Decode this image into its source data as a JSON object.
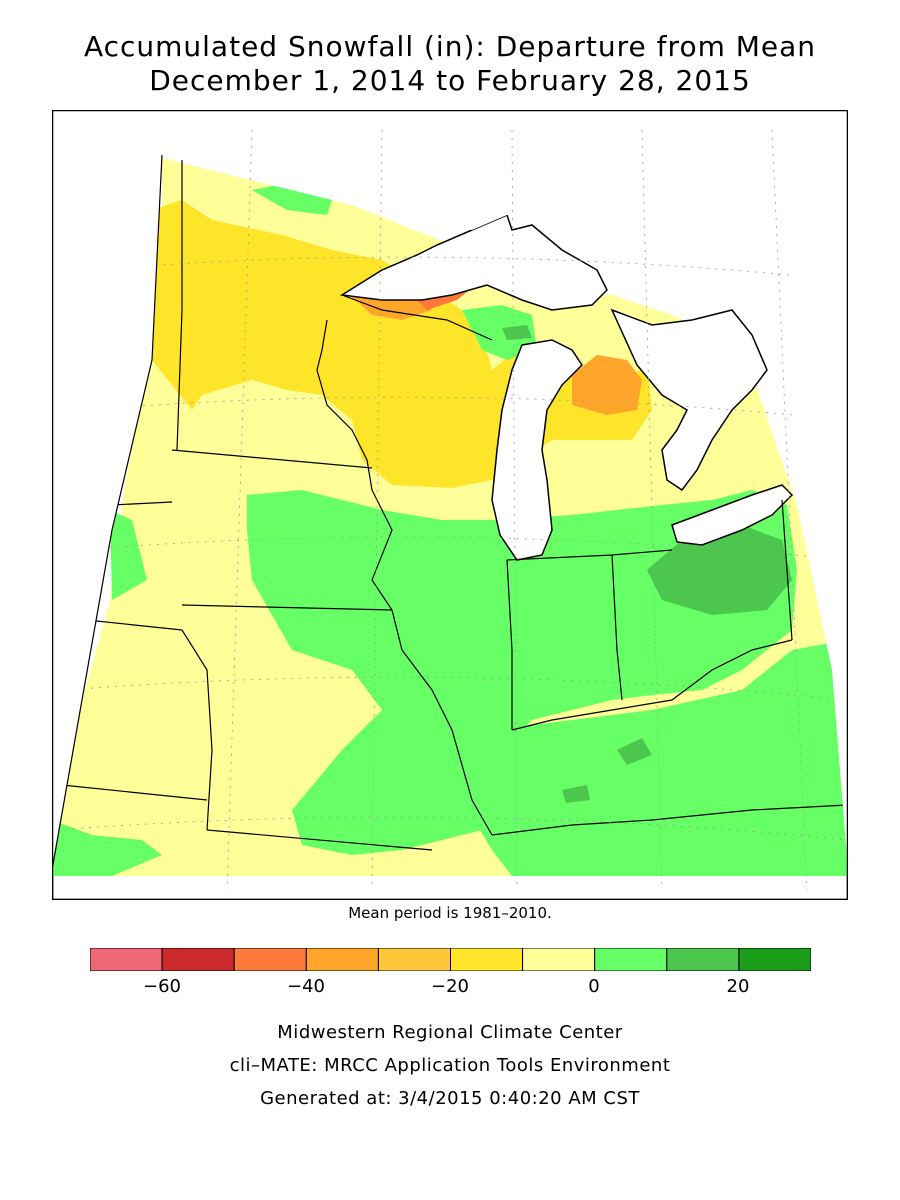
{
  "title": {
    "line1": "Accumulated Snowfall (in): Departure from Mean",
    "line2": "December 1, 2014 to February 28, 2015"
  },
  "note": "Mean period is 1981–2010.",
  "legend": {
    "ticks": [
      "−60",
      "−40",
      "−20",
      "0",
      "20"
    ],
    "bins": [
      {
        "min": -70,
        "max": -60,
        "color": "#ee6677"
      },
      {
        "min": -60,
        "max": -50,
        "color": "#cc2a2a"
      },
      {
        "min": -50,
        "max": -40,
        "color": "#ff7a3a"
      },
      {
        "min": -40,
        "max": -30,
        "color": "#ffa52a"
      },
      {
        "min": -30,
        "max": -20,
        "color": "#ffc63a"
      },
      {
        "min": -20,
        "max": -10,
        "color": "#ffe52a"
      },
      {
        "min": -10,
        "max": 0,
        "color": "#ffff99"
      },
      {
        "min": 0,
        "max": 10,
        "color": "#66ff66"
      },
      {
        "min": 10,
        "max": 20,
        "color": "#4cc64c"
      },
      {
        "min": 20,
        "max": 30,
        "color": "#1a9e1a"
      }
    ]
  },
  "footer": {
    "line1": "Midwestern Regional Climate Center",
    "line2": "cli–MATE: MRCC Application Tools Environment",
    "line3": "Generated at: 3/4/2015 0:40:20 AM CST"
  },
  "colors": {
    "water": "#ffffff",
    "border": "#000000",
    "grid": "#999999"
  }
}
